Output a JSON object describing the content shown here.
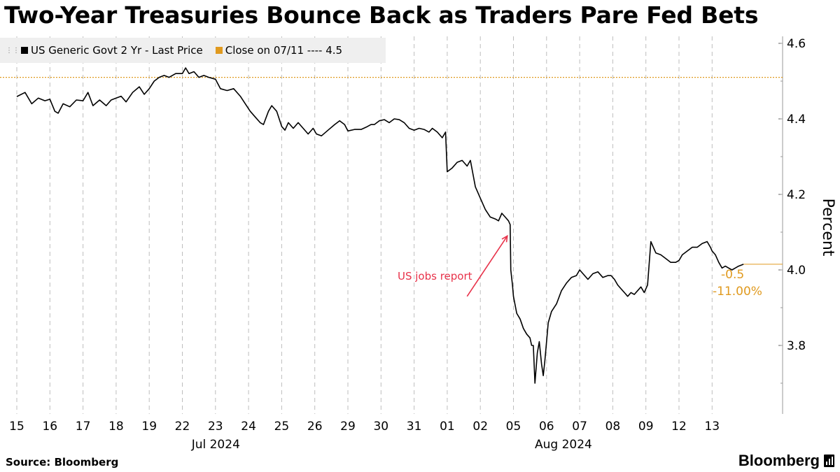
{
  "title": "Two-Year Treasuries Bounce Back as Traders Pare Fed Bets",
  "source": "Source: Bloomberg",
  "brand": "Bloomberg",
  "chart_data": {
    "type": "line",
    "ylabel": "Percent",
    "ylim": [
      3.66,
      4.61
    ],
    "yticks": [
      "4.6",
      "4.4",
      "4.2",
      "4.0",
      "3.8"
    ],
    "ytick_values": [
      4.6,
      4.4,
      4.2,
      4.0,
      3.8
    ],
    "categories": [
      "15",
      "16",
      "17",
      "18",
      "19",
      "22",
      "23",
      "24",
      "25",
      "26",
      "29",
      "30",
      "31",
      "01",
      "02",
      "05",
      "06",
      "07",
      "08",
      "09",
      "12",
      "13"
    ],
    "month_labels": [
      {
        "label": "Jul 2024",
        "at": 6
      },
      {
        "label": "Aug 2024",
        "at": 16.5
      }
    ],
    "grid": "vertical dashed",
    "series": [
      {
        "name": "US Generic Govt 2 Yr - Last Price",
        "color": "#000000",
        "points": [
          [
            0.0,
            4.459
          ],
          [
            0.25,
            4.47
          ],
          [
            0.45,
            4.44
          ],
          [
            0.65,
            4.455
          ],
          [
            0.85,
            4.448
          ],
          [
            1.0,
            4.452
          ],
          [
            1.15,
            4.42
          ],
          [
            1.25,
            4.415
          ],
          [
            1.4,
            4.44
          ],
          [
            1.6,
            4.432
          ],
          [
            1.8,
            4.45
          ],
          [
            2.0,
            4.448
          ],
          [
            2.15,
            4.47
          ],
          [
            2.3,
            4.435
          ],
          [
            2.5,
            4.45
          ],
          [
            2.7,
            4.435
          ],
          [
            2.85,
            4.45
          ],
          [
            3.0,
            4.455
          ],
          [
            3.15,
            4.46
          ],
          [
            3.3,
            4.445
          ],
          [
            3.5,
            4.47
          ],
          [
            3.7,
            4.485
          ],
          [
            3.85,
            4.465
          ],
          [
            4.0,
            4.48
          ],
          [
            4.15,
            4.5
          ],
          [
            4.3,
            4.51
          ],
          [
            4.45,
            4.515
          ],
          [
            4.6,
            4.51
          ],
          [
            4.8,
            4.52
          ],
          [
            5.0,
            4.52
          ],
          [
            5.1,
            4.535
          ],
          [
            5.2,
            4.52
          ],
          [
            5.35,
            4.525
          ],
          [
            5.5,
            4.51
          ],
          [
            5.65,
            4.515
          ],
          [
            5.8,
            4.51
          ],
          [
            6.0,
            4.505
          ],
          [
            6.15,
            4.48
          ],
          [
            6.35,
            4.475
          ],
          [
            6.55,
            4.48
          ],
          [
            6.75,
            4.46
          ],
          [
            6.9,
            4.44
          ],
          [
            7.05,
            4.42
          ],
          [
            7.2,
            4.405
          ],
          [
            7.35,
            4.39
          ],
          [
            7.45,
            4.385
          ],
          [
            7.6,
            4.42
          ],
          [
            7.7,
            4.435
          ],
          [
            7.85,
            4.42
          ],
          [
            8.0,
            4.38
          ],
          [
            8.1,
            4.37
          ],
          [
            8.2,
            4.39
          ],
          [
            8.35,
            4.375
          ],
          [
            8.5,
            4.39
          ],
          [
            8.65,
            4.375
          ],
          [
            8.8,
            4.36
          ],
          [
            8.95,
            4.375
          ],
          [
            9.05,
            4.36
          ],
          [
            9.2,
            4.355
          ],
          [
            9.4,
            4.37
          ],
          [
            9.6,
            4.385
          ],
          [
            9.75,
            4.395
          ],
          [
            9.9,
            4.385
          ],
          [
            10.0,
            4.368
          ],
          [
            10.2,
            4.372
          ],
          [
            10.4,
            4.372
          ],
          [
            10.55,
            4.378
          ],
          [
            10.7,
            4.385
          ],
          [
            10.8,
            4.385
          ],
          [
            10.95,
            4.395
          ],
          [
            11.1,
            4.398
          ],
          [
            11.25,
            4.39
          ],
          [
            11.4,
            4.4
          ],
          [
            11.55,
            4.398
          ],
          [
            11.7,
            4.39
          ],
          [
            11.85,
            4.375
          ],
          [
            12.0,
            4.37
          ],
          [
            12.15,
            4.375
          ],
          [
            12.3,
            4.372
          ],
          [
            12.45,
            4.365
          ],
          [
            12.55,
            4.375
          ],
          [
            12.7,
            4.365
          ],
          [
            12.85,
            4.35
          ],
          [
            12.95,
            4.365
          ],
          [
            13.0,
            4.26
          ],
          [
            13.15,
            4.27
          ],
          [
            13.3,
            4.285
          ],
          [
            13.45,
            4.29
          ],
          [
            13.6,
            4.275
          ],
          [
            13.7,
            4.29
          ],
          [
            13.85,
            4.22
          ],
          [
            14.0,
            4.19
          ],
          [
            14.15,
            4.16
          ],
          [
            14.3,
            4.14
          ],
          [
            14.45,
            4.135
          ],
          [
            14.55,
            4.13
          ],
          [
            14.65,
            4.15
          ],
          [
            14.75,
            4.14
          ],
          [
            14.85,
            4.13
          ],
          [
            14.9,
            4.12
          ],
          [
            14.92,
            4.0
          ],
          [
            14.97,
            3.96
          ],
          [
            15.0,
            3.93
          ],
          [
            15.1,
            3.885
          ],
          [
            15.2,
            3.87
          ],
          [
            15.3,
            3.845
          ],
          [
            15.4,
            3.83
          ],
          [
            15.5,
            3.82
          ],
          [
            15.55,
            3.8
          ],
          [
            15.6,
            3.8
          ],
          [
            15.65,
            3.7
          ],
          [
            15.72,
            3.78
          ],
          [
            15.78,
            3.81
          ],
          [
            15.85,
            3.75
          ],
          [
            15.9,
            3.72
          ],
          [
            15.95,
            3.76
          ],
          [
            16.05,
            3.86
          ],
          [
            16.15,
            3.89
          ],
          [
            16.3,
            3.91
          ],
          [
            16.45,
            3.945
          ],
          [
            16.6,
            3.965
          ],
          [
            16.75,
            3.98
          ],
          [
            16.9,
            3.985
          ],
          [
            17.0,
            4.0
          ],
          [
            17.1,
            3.99
          ],
          [
            17.25,
            3.975
          ],
          [
            17.4,
            3.99
          ],
          [
            17.55,
            3.995
          ],
          [
            17.7,
            3.98
          ],
          [
            17.85,
            3.985
          ],
          [
            17.95,
            3.985
          ],
          [
            18.05,
            3.975
          ],
          [
            18.15,
            3.96
          ],
          [
            18.25,
            3.95
          ],
          [
            18.35,
            3.94
          ],
          [
            18.45,
            3.93
          ],
          [
            18.55,
            3.94
          ],
          [
            18.65,
            3.935
          ],
          [
            18.75,
            3.945
          ],
          [
            18.85,
            3.955
          ],
          [
            18.95,
            3.94
          ],
          [
            19.05,
            3.96
          ],
          [
            19.15,
            4.075
          ],
          [
            19.3,
            4.045
          ],
          [
            19.45,
            4.04
          ],
          [
            19.6,
            4.03
          ],
          [
            19.75,
            4.02
          ],
          [
            19.9,
            4.02
          ],
          [
            20.0,
            4.025
          ],
          [
            20.1,
            4.04
          ],
          [
            20.25,
            4.05
          ],
          [
            20.4,
            4.06
          ],
          [
            20.55,
            4.06
          ],
          [
            20.7,
            4.07
          ],
          [
            20.85,
            4.075
          ],
          [
            20.95,
            4.06
          ],
          [
            21.0,
            4.05
          ],
          [
            21.1,
            4.04
          ],
          [
            21.2,
            4.02
          ],
          [
            21.3,
            4.005
          ],
          [
            21.4,
            4.01
          ],
          [
            21.5,
            4.005
          ],
          [
            21.6,
            4.0
          ],
          [
            21.7,
            4.005
          ],
          [
            21.8,
            4.01
          ],
          [
            21.95,
            4.015
          ]
        ]
      },
      {
        "name": "Close on 07/11 ---- 4.5",
        "color": "#e09a1f",
        "value": 4.51
      }
    ],
    "last_value_label": {
      "change": "-0.5",
      "pct": "-11.00%",
      "value": 4.015
    },
    "annotations": [
      {
        "text": "US jobs report",
        "color": "#e8324a",
        "arrow_to": [
          14.9,
          4.09
        ]
      }
    ]
  }
}
